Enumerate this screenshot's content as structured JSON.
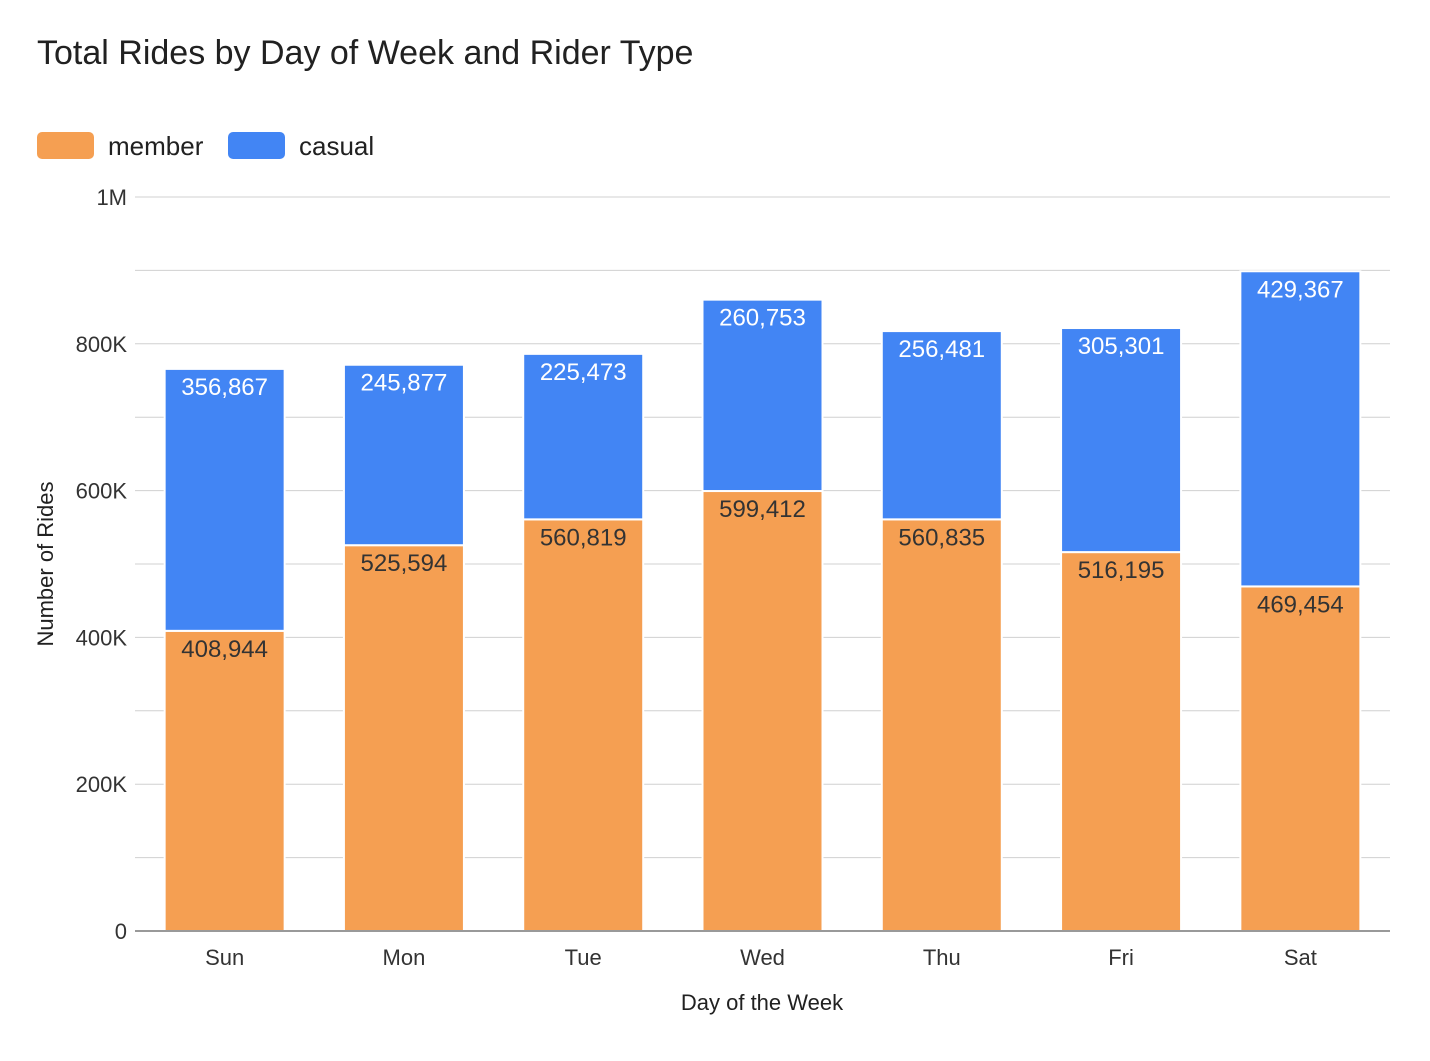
{
  "chart_data": {
    "type": "bar",
    "stacked": true,
    "title": "Total Rides by Day of Week and Rider Type",
    "xlabel": "Day of the Week",
    "ylabel": "Number of Rides",
    "categories": [
      "Sun",
      "Mon",
      "Tue",
      "Wed",
      "Thu",
      "Fri",
      "Sat"
    ],
    "series": [
      {
        "name": "member",
        "color": "#f59f52",
        "label_color": "#333333",
        "values": [
          408944,
          525594,
          560819,
          599412,
          560835,
          516195,
          469454
        ],
        "labels": [
          "408,944",
          "525,594",
          "560,819",
          "599,412",
          "560,835",
          "516,195",
          "469,454"
        ]
      },
      {
        "name": "casual",
        "color": "#4285f4",
        "label_color": "#ffffff",
        "values": [
          356867,
          245877,
          225473,
          260753,
          256481,
          305301,
          429367
        ],
        "labels": [
          "356,867",
          "245,877",
          "225,473",
          "260,753",
          "256,481",
          "305,301",
          "429,367"
        ]
      }
    ],
    "ylim": [
      0,
      1000000
    ],
    "y_ticks": [
      {
        "value": 0,
        "label": "0"
      },
      {
        "value": 200000,
        "label": "200K"
      },
      {
        "value": 400000,
        "label": "400K"
      },
      {
        "value": 600000,
        "label": "600K"
      },
      {
        "value": 800000,
        "label": "800K"
      },
      {
        "value": 1000000,
        "label": "1M"
      }
    ],
    "minor_gridline_step": 100000,
    "grid": true,
    "legend_position": "top-left"
  },
  "colors": {
    "gridline": "#d0d0d0",
    "axis": "#999999",
    "title_text": "#212121",
    "tick_text": "#333333"
  }
}
